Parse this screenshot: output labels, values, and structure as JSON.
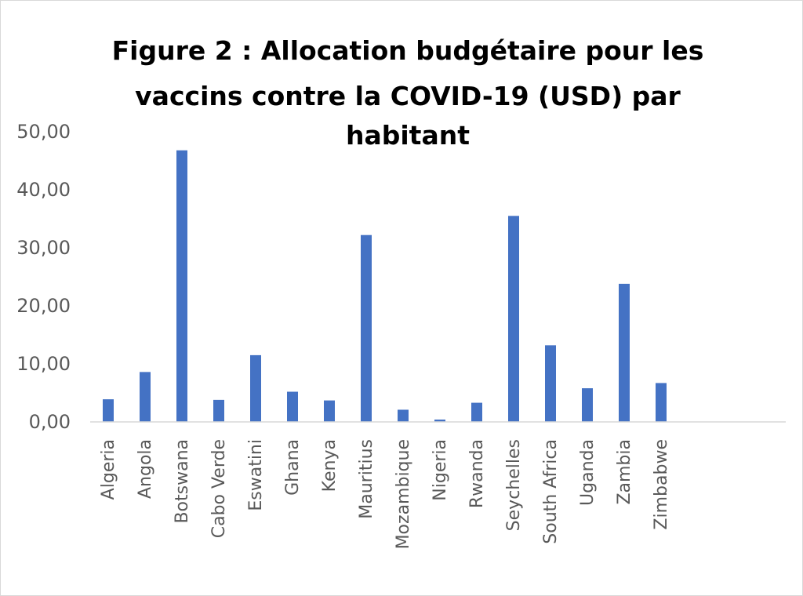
{
  "chart_data": {
    "type": "bar",
    "title_lines": [
      "Figure 2 : Allocation budgétaire pour les",
      "vaccins contre la COVID-19 (USD) par",
      "habitant"
    ],
    "categories": [
      "Algeria",
      "Angola",
      "Botswana",
      "Cabo Verde",
      "Eswatini",
      "Ghana",
      "Kenya",
      "Mauritius",
      "Mozambique",
      "Nigeria",
      "Rwanda",
      "Seychelles",
      "South Africa",
      "Uganda",
      "Zambia",
      "Zimbabwe"
    ],
    "values": [
      3.9,
      8.6,
      46.8,
      3.8,
      11.5,
      5.2,
      3.7,
      32.2,
      2.1,
      0.4,
      3.3,
      35.5,
      13.2,
      5.8,
      23.8,
      6.7
    ],
    "yticks": [
      "0,00",
      "10,00",
      "20,00",
      "30,00",
      "40,00",
      "50,00"
    ],
    "ylim": [
      0,
      50
    ],
    "bar_color": "#4472C4",
    "grid": false,
    "legend": "none"
  }
}
